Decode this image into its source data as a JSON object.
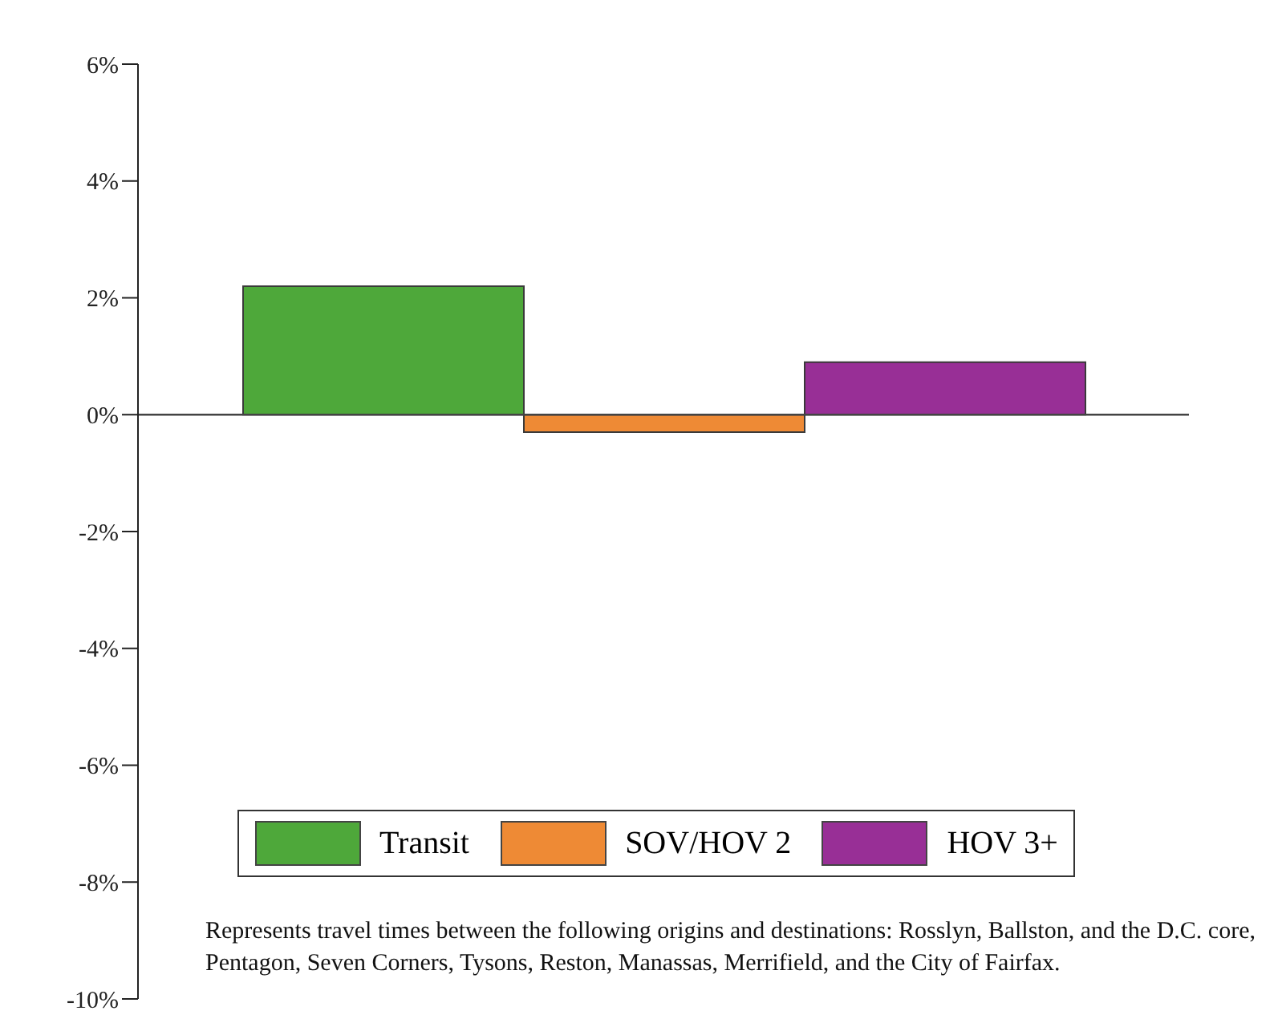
{
  "chart_data": {
    "type": "bar",
    "categories": [
      null
    ],
    "series": [
      {
        "name": "Transit",
        "color": "#4ea83a",
        "values": [
          2.2
        ]
      },
      {
        "name": "SOV/HOV 2",
        "color": "#ee8a35",
        "values": [
          -0.3
        ]
      },
      {
        "name": "HOV 3+",
        "color": "#982f96",
        "values": [
          0.9
        ]
      }
    ],
    "ylim": [
      -10,
      6
    ],
    "yticks": [
      {
        "value": -10,
        "label": "-10%"
      },
      {
        "value": -8,
        "label": "-8%"
      },
      {
        "value": -6,
        "label": "-6%"
      },
      {
        "value": -4,
        "label": "-4%"
      },
      {
        "value": -2,
        "label": "-2%"
      },
      {
        "value": 0,
        "label": "0%"
      },
      {
        "value": 2,
        "label": "2%"
      },
      {
        "value": 4,
        "label": "4%"
      },
      {
        "value": 6,
        "label": "6%"
      }
    ],
    "legend": "bottom",
    "tick_labels": "y",
    "annotations": [
      "Represents travel times between the following origins and destinations: Rosslyn, Ballston, and the D.C. core, Pentagon, Seven Corners, Tysons, Reston, Manassas, Merrifield, and the City of Fairfax."
    ]
  }
}
